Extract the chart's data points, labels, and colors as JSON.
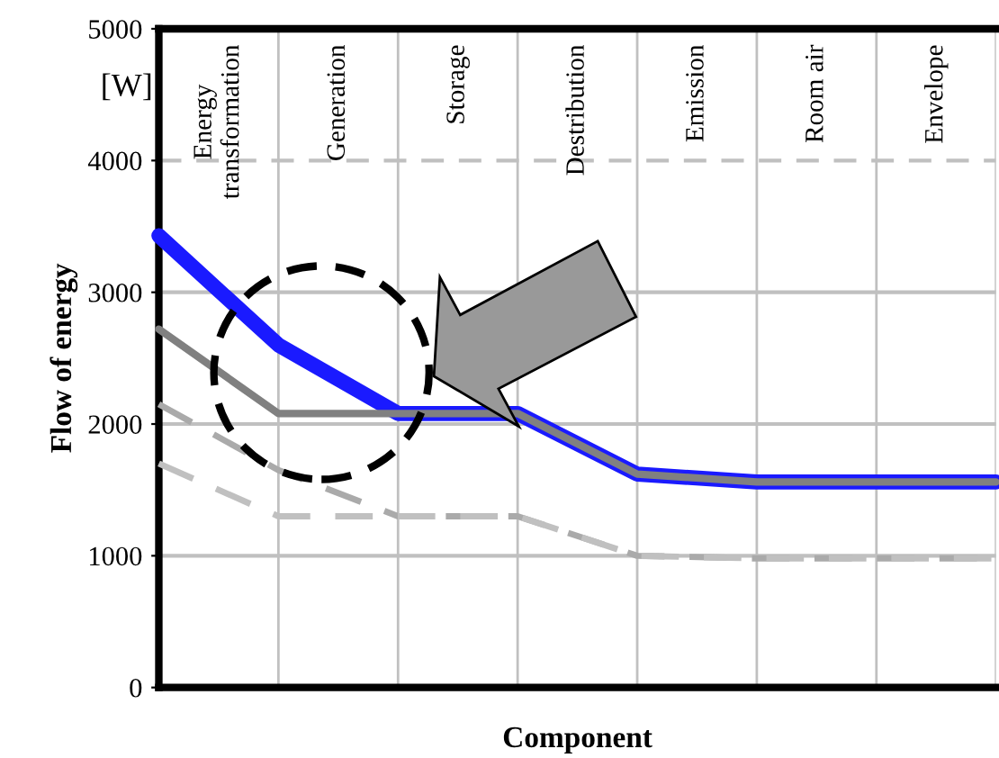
{
  "chart_data": {
    "type": "line",
    "xlabel": "Component",
    "ylabel": "Flow of energy",
    "categories": [
      null,
      null,
      null,
      null,
      null,
      null,
      null,
      null
    ],
    "series": [
      {
        "color": "#1a1aff",
        "values": [
          3430,
          2600,
          2080,
          2080,
          1620,
          1560,
          1560,
          1560
        ],
        "line_style": "solid"
      },
      {
        "color": "#808080",
        "values": [
          2720,
          2080,
          2080,
          2080,
          1620,
          1560,
          1560,
          1560
        ],
        "line_style": "solid"
      },
      {
        "color": "#aaaaaa",
        "values": [
          2150,
          1650,
          1300,
          1300,
          1000,
          980,
          980,
          980
        ],
        "line_style": "dashed"
      },
      {
        "color": "#c0c0c0",
        "values": [
          1700,
          1300,
          1300,
          1300,
          1000,
          980,
          980,
          980
        ],
        "line_style": "dashed"
      }
    ],
    "ylim": [
      0,
      5000
    ],
    "yticks": [
      0,
      1000,
      2000,
      3000,
      4000,
      5000
    ],
    "tick_labels": "y",
    "grid": "x",
    "ref_lines": [
      {
        "axis": "y",
        "value": 1000,
        "color": "#c0c0c0",
        "line_style": "solid"
      },
      {
        "axis": "y",
        "value": 2000,
        "color": "#c0c0c0",
        "line_style": "solid"
      },
      {
        "axis": "y",
        "value": 3000,
        "color": "#c0c0c0",
        "line_style": "solid"
      },
      {
        "axis": "y",
        "value": 4000,
        "color": "#c0c0c0",
        "line_style": "dashed"
      }
    ],
    "annotations": [
      "[W]",
      "Energy\ntransformation",
      "Generation",
      "Storage",
      "Destribution",
      "Emission",
      "Room air",
      "Envelope"
    ],
    "marker": "none"
  }
}
